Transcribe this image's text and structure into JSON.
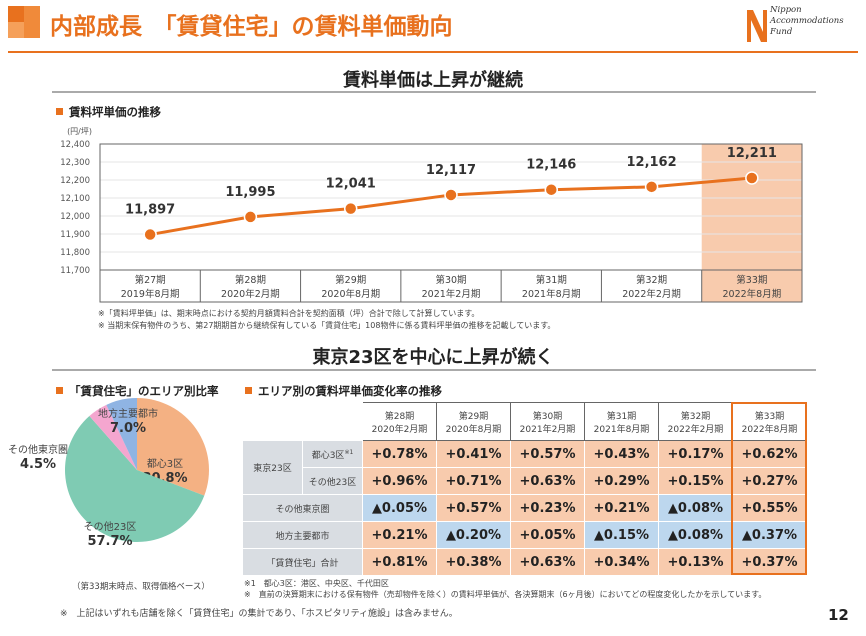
{
  "header": {
    "title": "内部成長　「賃貸住宅」の賃料単価動向",
    "logo_text": [
      "Nippon",
      "Accommodations",
      "Fund"
    ]
  },
  "section1": {
    "heading": "賃料単価は上昇が継続",
    "subheading": "賃料坪単価の推移",
    "notes": [
      "※「賃料坪単価」は、期末時点における契約月額賃料合計を契約面積（坪）合計で除して計算しています。",
      "※ 当期末保有物件のうち、第27期期首から継続保有している「賃貸住宅」108物件に係る賃料坪単価の推移を記載しています。"
    ]
  },
  "section2": {
    "heading": "東京23区を中心に上昇が続く",
    "pie_subheading": "「賃貸住宅」のエリア別比率",
    "pie_note": "（第33期末時点、取得価格ベース）",
    "table_subheading": "エリア別の賃料坪単価変化率の推移",
    "table_notes": [
      "※1　都心3区：港区、中央区、千代田区",
      "※　直前の決算期末における保有物件（売却物件を除く）の賃料坪単価が、各決算期末（6ヶ月後）においてどの程度変化したかを示しています。"
    ]
  },
  "footer": {
    "note": "※　上記はいずれも店舗を除く「賃貸住宅」の集計であり、「ホスピタリティ施設」は含みません。",
    "page": "12"
  },
  "colors": {
    "accent": "#e8711e",
    "positive_cell": "#f8cbad",
    "negative_cell": "#bdd7ee",
    "label_cell": "#d9dde2"
  },
  "chart_data": [
    {
      "type": "line",
      "ylabel": "(円/坪)",
      "ylim": [
        11700,
        12400
      ],
      "yticks": [
        "11,700",
        "11,800",
        "11,900",
        "12,000",
        "12,100",
        "12,200",
        "12,300",
        "12,400"
      ],
      "grid": true,
      "categories": [
        [
          "第27期",
          "2019年8月期"
        ],
        [
          "第28期",
          "2020年2月期"
        ],
        [
          "第29期",
          "2020年8月期"
        ],
        [
          "第30期",
          "2021年2月期"
        ],
        [
          "第31期",
          "2021年8月期"
        ],
        [
          "第32期",
          "2022年2月期"
        ],
        [
          "第33期",
          "2022年8月期"
        ]
      ],
      "values": [
        11897,
        11995,
        12041,
        12117,
        12146,
        12162,
        12211
      ],
      "data_labels": [
        "11,897",
        "11,995",
        "12,041",
        "12,117",
        "12,146",
        "12,162",
        "12,211"
      ],
      "highlight_index": 6,
      "color": "#e8711e"
    },
    {
      "type": "pie",
      "slices": [
        {
          "label": "都心3区",
          "value": 30.8,
          "text": "30.8%",
          "color": "#f4b183"
        },
        {
          "label": "その他23区",
          "value": 57.7,
          "text": "57.7%",
          "color": "#7fcbb3"
        },
        {
          "label": "その他東京圏",
          "value": 4.5,
          "text": "4.5%",
          "color": "#f4a6cf"
        },
        {
          "label": "地方主要都市",
          "value": 7.0,
          "text": "7.0%",
          "color": "#8fb4e3"
        }
      ]
    },
    {
      "type": "table",
      "columns": [
        [
          "第28期",
          "2020年2月期"
        ],
        [
          "第29期",
          "2020年8月期"
        ],
        [
          "第30期",
          "2021年2月期"
        ],
        [
          "第31期",
          "2021年8月期"
        ],
        [
          "第32期",
          "2022年2月期"
        ],
        [
          "第33期",
          "2022年8月期"
        ]
      ],
      "group_label": "東京23区",
      "rows": [
        {
          "label": "都心3区",
          "sup": "※1",
          "values": [
            "+0.78%",
            "+0.41%",
            "+0.57%",
            "+0.43%",
            "+0.17%",
            "+0.62%"
          ]
        },
        {
          "label": "その他23区",
          "values": [
            "+0.96%",
            "+0.71%",
            "+0.63%",
            "+0.29%",
            "+0.15%",
            "+0.27%"
          ]
        },
        {
          "label": "その他東京圏",
          "values": [
            "▲0.05%",
            "+0.57%",
            "+0.23%",
            "+0.21%",
            "▲0.08%",
            "+0.55%"
          ]
        },
        {
          "label": "地方主要都市",
          "values": [
            "+0.21%",
            "▲0.20%",
            "+0.05%",
            "▲0.15%",
            "▲0.08%",
            "▲0.37%"
          ]
        },
        {
          "label": "「賃貸住宅」合計",
          "values": [
            "+0.81%",
            "+0.38%",
            "+0.63%",
            "+0.34%",
            "+0.13%",
            "+0.37%"
          ]
        }
      ]
    }
  ]
}
